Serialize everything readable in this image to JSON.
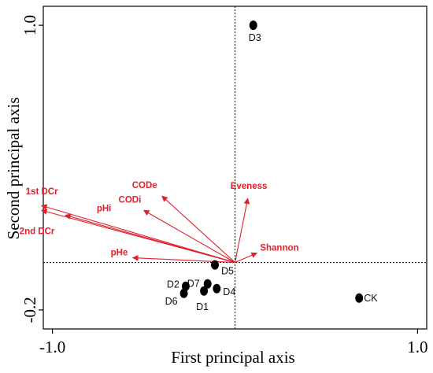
{
  "chart_data": {
    "type": "scatter",
    "title": "",
    "xlabel": "First principal axis",
    "ylabel": "Second principal axis",
    "xlim": [
      -1.05,
      1.05
    ],
    "ylim": [
      -0.28,
      1.08
    ],
    "x_ticks": [
      {
        "value": -1.0,
        "label": "-1.0"
      },
      {
        "value": 1.0,
        "label": "1.0"
      }
    ],
    "y_ticks": [
      {
        "value": -0.2,
        "label": "-0.2"
      },
      {
        "value": 1.0,
        "label": "1.0"
      }
    ],
    "reference_lines": {
      "x": 0,
      "y": 0
    },
    "colors": {
      "points": "#000000",
      "vectors": "#e0202a"
    },
    "samples": [
      {
        "label": "D3",
        "x": 0.1,
        "y": 1.0
      },
      {
        "label": "D5",
        "x": -0.11,
        "y": -0.01
      },
      {
        "label": "D7",
        "x": -0.15,
        "y": -0.09
      },
      {
        "label": "D2",
        "x": -0.27,
        "y": -0.1
      },
      {
        "label": "D6",
        "x": -0.28,
        "y": -0.13
      },
      {
        "label": "D1",
        "x": -0.17,
        "y": -0.12
      },
      {
        "label": "D4",
        "x": -0.1,
        "y": -0.11
      },
      {
        "label": "CK",
        "x": 0.68,
        "y": -0.15
      }
    ],
    "vectors": [
      {
        "label": "1st DCr",
        "x": -1.06,
        "y": 0.24
      },
      {
        "label": "2nd DCr",
        "x": -1.06,
        "y": 0.22
      },
      {
        "label": "pHi",
        "x": -0.93,
        "y": 0.2
      },
      {
        "label": "CODe",
        "x": -0.4,
        "y": 0.28
      },
      {
        "label": "CODi",
        "x": -0.5,
        "y": 0.22
      },
      {
        "label": "Eveness",
        "x": 0.07,
        "y": 0.27
      },
      {
        "label": "Shannon",
        "x": 0.12,
        "y": 0.04
      },
      {
        "label": "pHe",
        "x": -0.56,
        "y": 0.02
      }
    ]
  }
}
